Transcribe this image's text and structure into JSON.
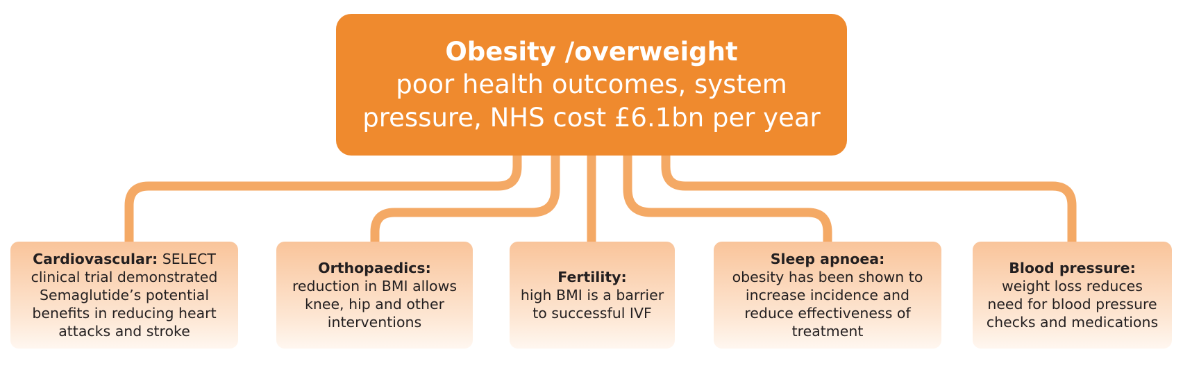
{
  "root": {
    "title": "Obesity /overweight",
    "description": "poor health outcomes, system pressure, NHS cost £6.1bn per year"
  },
  "branches": [
    {
      "label": "Cardiovascular:",
      "text": "SELECT clinical trial demonstrated Semaglutide’s potential benefits in reducing heart attacks and stroke"
    },
    {
      "label": "Orthopaedics:",
      "text": "reduction in BMI allows knee, hip and other interventions"
    },
    {
      "label": "Fertility:",
      "text": "high BMI is a barrier to successful IVF"
    },
    {
      "label": "Sleep apnoea:",
      "text": "obesity has been shown to increase incidence and reduce effectiveness of treatment"
    },
    {
      "label": "Blood pressure:",
      "text": "weight loss reduces need for blood pressure checks and medications"
    }
  ],
  "colors": {
    "root_fill": "#ef8a2e",
    "connector": "#f4a965",
    "box_top": "#f9c49a",
    "box_bottom": "#fff7f0"
  }
}
